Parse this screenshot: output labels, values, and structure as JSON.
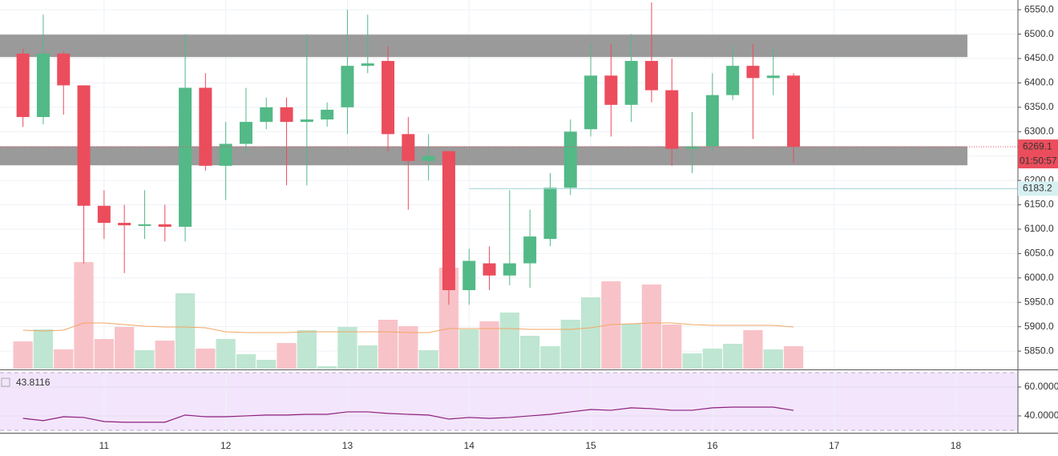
{
  "chart_data": {
    "type": "candlestick",
    "categories": [
      null,
      null,
      null,
      null,
      "11",
      null,
      null,
      null,
      null,
      null,
      "12",
      null,
      null,
      null,
      null,
      null,
      "13",
      null,
      null,
      null,
      null,
      null,
      "14",
      null,
      null,
      null,
      null,
      null,
      "15",
      null,
      null,
      null,
      null,
      null,
      "16",
      null,
      null,
      null,
      null,
      null,
      "17",
      null,
      null,
      null,
      null,
      null,
      "18"
    ],
    "open": [
      6460,
      6330,
      6460,
      6395,
      6148,
      6113,
      6108,
      6110,
      6105,
      6390,
      6230,
      6275,
      6320,
      6350,
      6320,
      6325,
      6350,
      6435,
      6445,
      6295,
      6240,
      6260,
      5975,
      6030,
      6005,
      6030,
      6080,
      6185,
      6305,
      6415,
      6355,
      6445,
      6385,
      6265,
      6270,
      6375,
      6435,
      6410,
      6415,
      null,
      null,
      null,
      null,
      null,
      null,
      null,
      null
    ],
    "high": [
      6470,
      6540,
      6465,
      6395,
      6180,
      6150,
      6180,
      6150,
      6500,
      6420,
      6320,
      6390,
      6370,
      6370,
      6500,
      6360,
      6550,
      6540,
      6475,
      6330,
      6295,
      6260,
      6060,
      6065,
      6180,
      6140,
      6215,
      6325,
      6480,
      6480,
      6500,
      6565,
      6450,
      6340,
      6420,
      6475,
      6480,
      6470,
      6420,
      null,
      null,
      null,
      null,
      null,
      null,
      null,
      null
    ],
    "low": [
      6310,
      6315,
      6335,
      6030,
      6080,
      6010,
      6080,
      6075,
      6075,
      6220,
      6160,
      6255,
      6305,
      6190,
      6190,
      6310,
      6295,
      6420,
      6260,
      6140,
      6200,
      5945,
      5945,
      5975,
      5985,
      5980,
      6065,
      6170,
      6290,
      6290,
      6320,
      6360,
      6230,
      6215,
      6260,
      6365,
      6285,
      6375,
      6235,
      null,
      null,
      null,
      null,
      null,
      null,
      null,
      null
    ],
    "close": [
      6330,
      6460,
      6395,
      6148,
      6113,
      6108,
      6110,
      6105,
      6390,
      6230,
      6275,
      6320,
      6350,
      6320,
      6325,
      6345,
      6435,
      6440,
      6295,
      6240,
      6250,
      5975,
      6035,
      6005,
      6030,
      6085,
      6185,
      6300,
      6415,
      6355,
      6445,
      6385,
      6265,
      6270,
      6375,
      6435,
      6410,
      6415,
      6269.1,
      null,
      null,
      null,
      null,
      null,
      null,
      null,
      null
    ],
    "up_color": "#53b987",
    "down_color": "#eb4d5c",
    "ylim": [
      5814,
      6570
    ],
    "yticks": [
      {
        "value": 5850,
        "label": "5850.0"
      },
      {
        "value": 5900,
        "label": "5900.0"
      },
      {
        "value": 5950,
        "label": "5950.0"
      },
      {
        "value": 6000,
        "label": "6000.0"
      },
      {
        "value": 6050,
        "label": "6050.0"
      },
      {
        "value": 6100,
        "label": "6100.0"
      },
      {
        "value": 6150,
        "label": "6150.0"
      },
      {
        "value": 6200,
        "label": "6200.0"
      },
      {
        "value": 6250,
        "label": "6250.0"
      },
      {
        "value": 6300,
        "label": "6300.0"
      },
      {
        "value": 6350,
        "label": "6350.0"
      },
      {
        "value": 6400,
        "label": "6400.0"
      },
      {
        "value": 6450,
        "label": "6450.0"
      },
      {
        "value": 6500,
        "label": "6500.0"
      },
      {
        "value": 6550,
        "label": "6550.0"
      }
    ],
    "grid": true,
    "zones": [
      [
        6453,
        6499
      ],
      [
        6231,
        6270
      ]
    ],
    "countdown": "01:50:57",
    "level": 6183.2,
    "volume": [
      34,
      49,
      24,
      133,
      37,
      52,
      23,
      35,
      94,
      25,
      37,
      18,
      11,
      32,
      48,
      3,
      52,
      29,
      61,
      53,
      23,
      126,
      49,
      59,
      70,
      41,
      28,
      61,
      89,
      109,
      56,
      105,
      55,
      19,
      25,
      31,
      48,
      24,
      28,
      null,
      null,
      null,
      null,
      null,
      null,
      null,
      null
    ],
    "volume_ma": [
      48,
      47,
      48,
      57,
      57,
      55,
      53,
      52,
      52,
      51,
      46,
      45,
      45,
      45,
      46,
      46,
      46,
      46,
      46,
      45,
      45,
      50,
      50,
      50,
      50,
      49,
      49,
      49,
      51,
      55,
      56,
      57,
      57,
      55,
      54,
      54,
      54,
      54,
      52,
      null,
      null,
      null,
      null,
      null,
      null,
      null,
      null
    ],
    "volume_ylim": [
      0,
      460
    ],
    "rsi": {
      "values": [
        38.3,
        36.7,
        39.4,
        38.9,
        36.1,
        35.6,
        35.6,
        35.6,
        40.6,
        39.4,
        39.4,
        40,
        40.6,
        40.6,
        41.1,
        41.1,
        42.8,
        42.8,
        41.7,
        41.1,
        40.6,
        37.8,
        38.9,
        38.3,
        38.9,
        40,
        41.1,
        42.8,
        44.4,
        43.9,
        45.6,
        45,
        43.9,
        43.9,
        45.6,
        46.1,
        46.1,
        46.1,
        43.8116,
        null,
        null,
        null,
        null,
        null,
        null,
        null,
        null
      ],
      "ylim": [
        28.3,
        71.1
      ],
      "yticks": [
        {
          "value": 40,
          "label": "40.0000"
        },
        {
          "value": 60,
          "label": "60.0000"
        }
      ],
      "bands": [
        30,
        70
      ],
      "color": "#8e1f7e"
    }
  }
}
